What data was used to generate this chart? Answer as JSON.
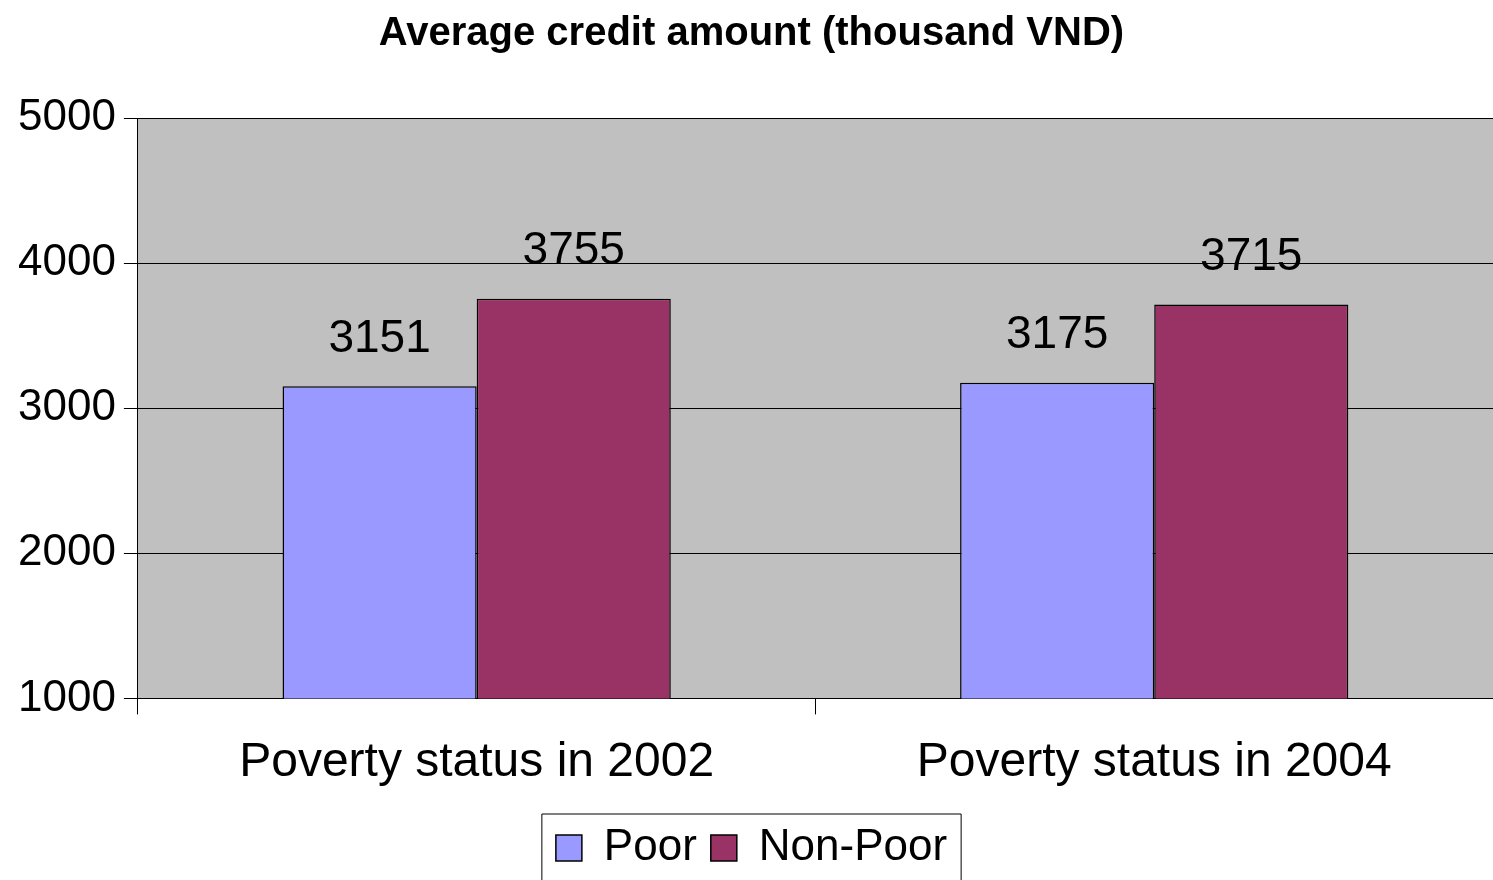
{
  "chart_data": {
    "type": "bar",
    "title": "Average credit amount (thousand VND)",
    "categories": [
      "Poverty status in 2002",
      "Poverty status in 2004"
    ],
    "series": [
      {
        "name": "Poor",
        "color": "#9999ff",
        "values": [
          3151,
          3175
        ]
      },
      {
        "name": "Non-Poor",
        "color": "#993366",
        "values": [
          3755,
          3715
        ]
      }
    ],
    "ylim": [
      1000,
      5000
    ],
    "yticks": [
      1000,
      2000,
      3000,
      4000,
      5000
    ],
    "grid": "y",
    "legend": "bottom",
    "data_labels": true
  }
}
